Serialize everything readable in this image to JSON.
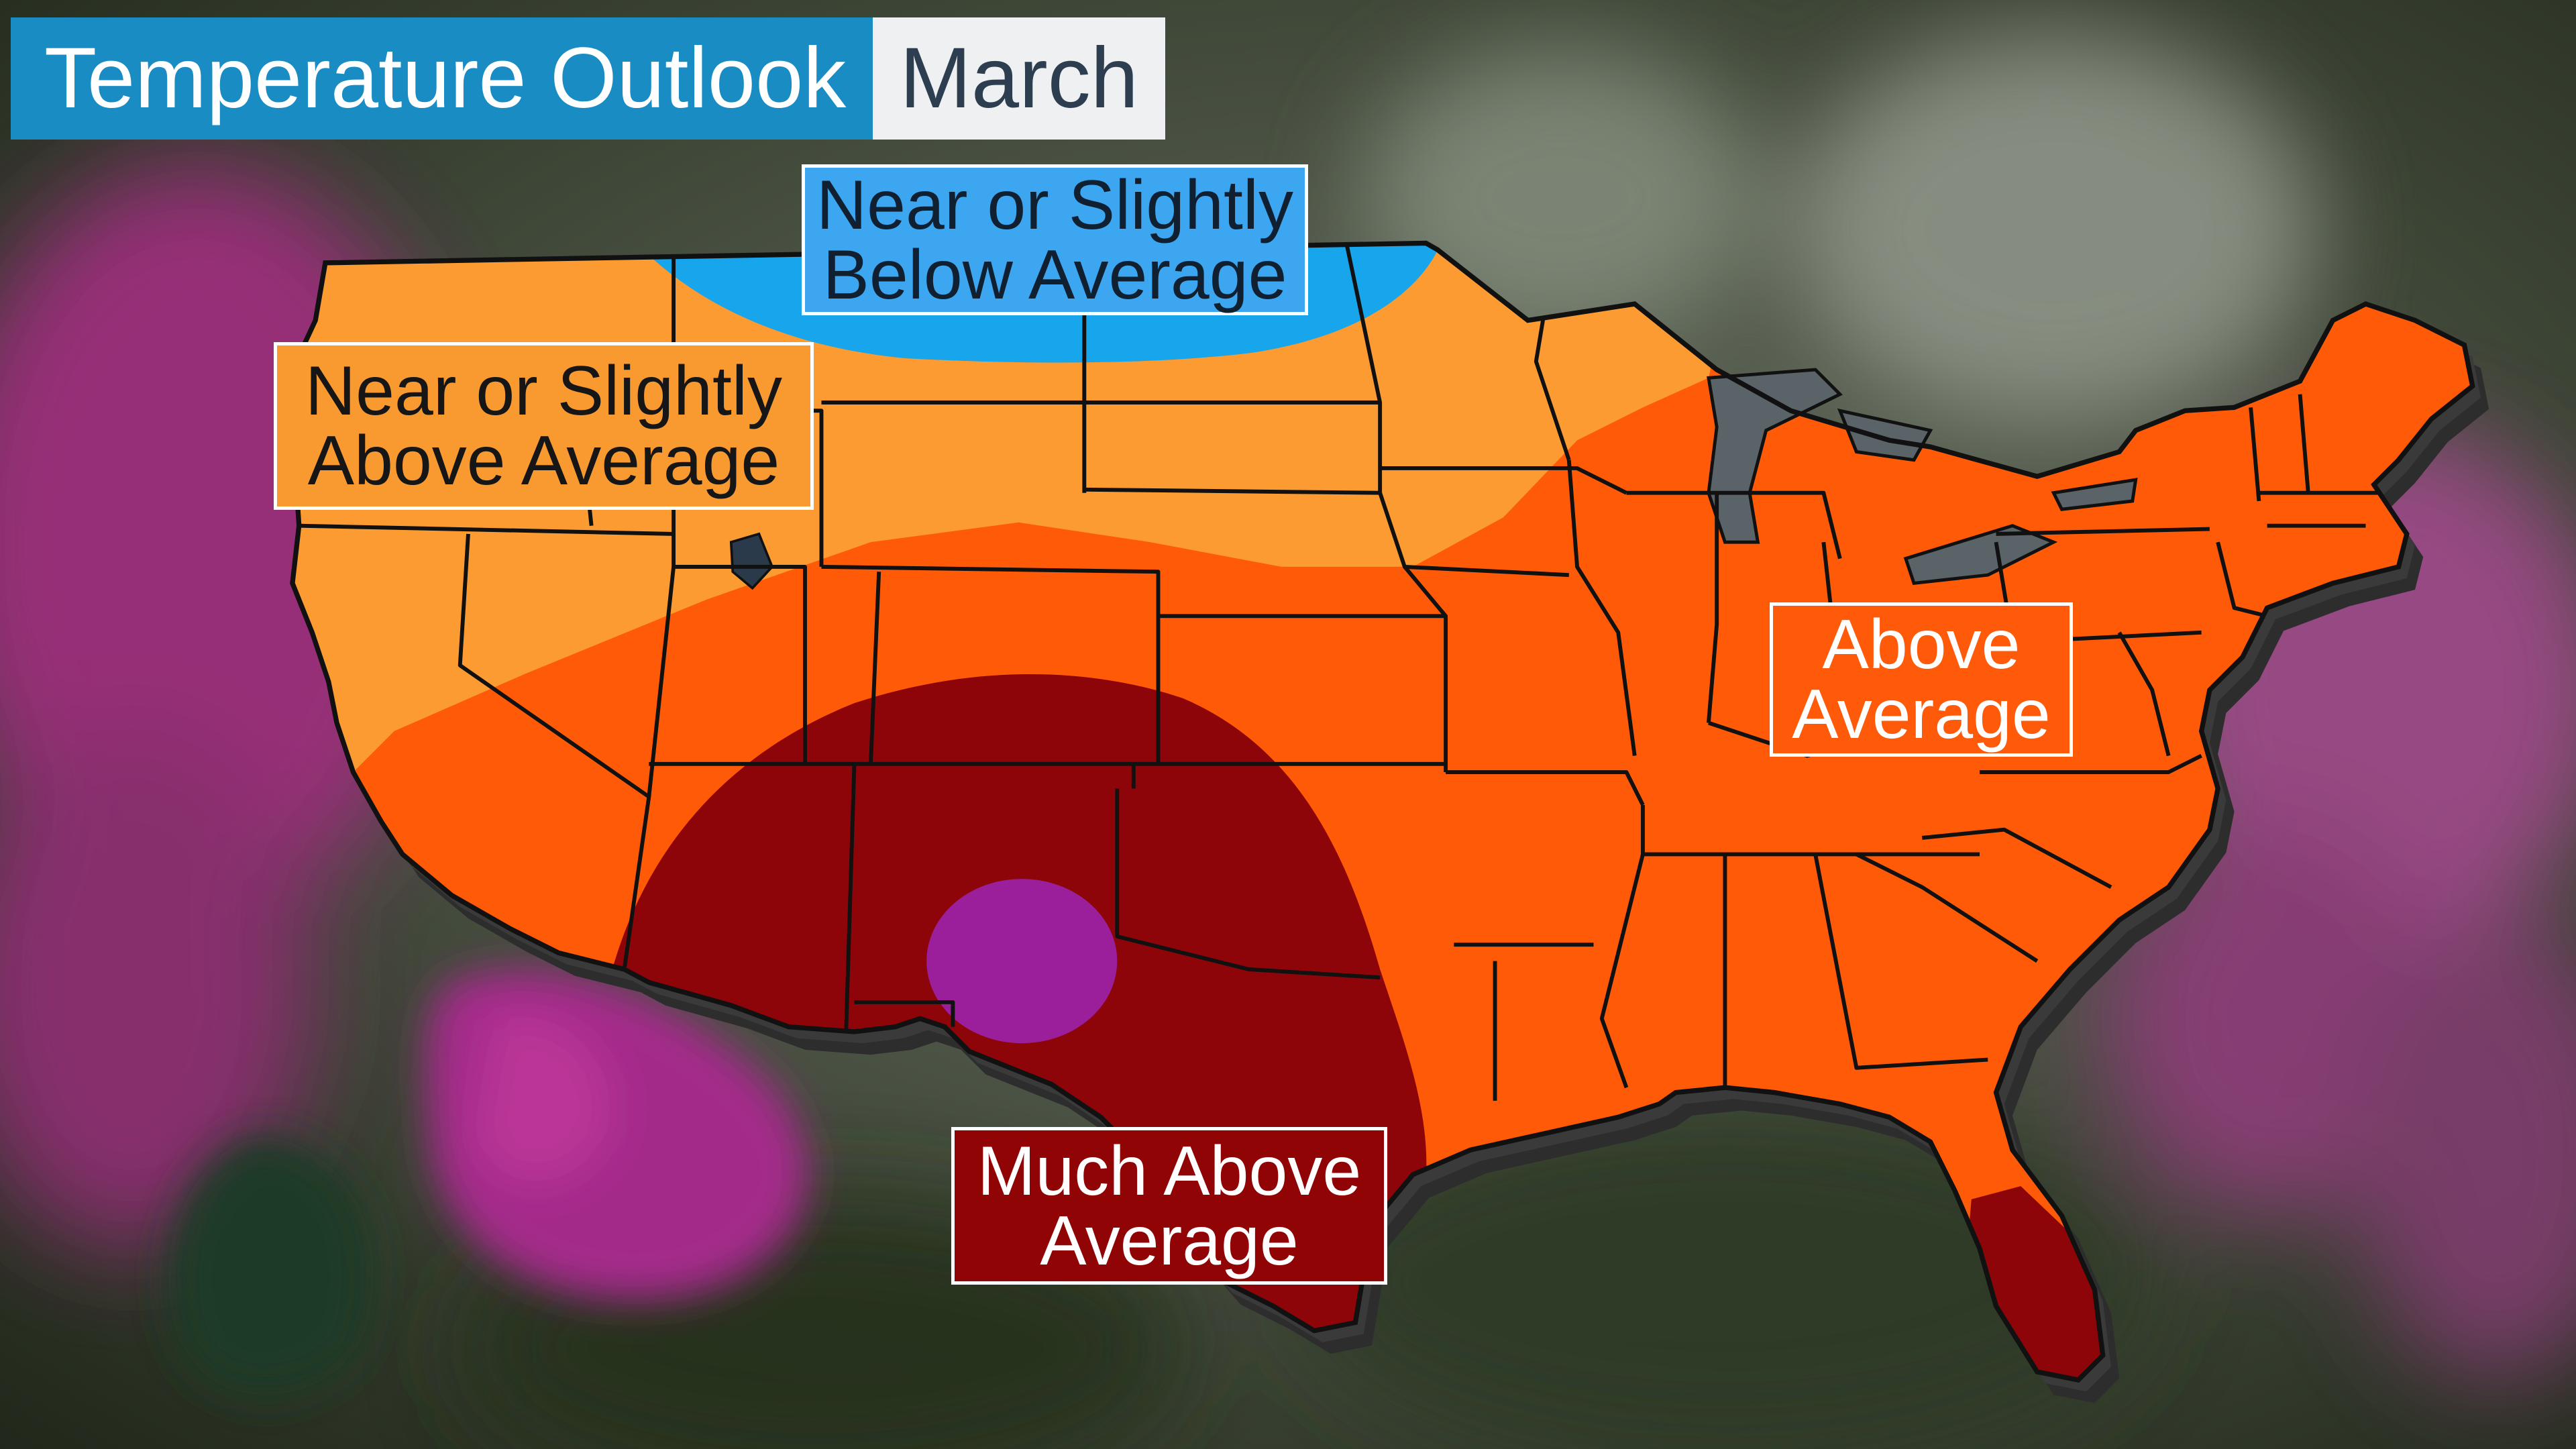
{
  "title": {
    "main": "Temperature Outlook",
    "month": "March"
  },
  "legend_labels": {
    "near_below": [
      "Near or Slightly",
      "Below Average"
    ],
    "near_above": [
      "Near or Slightly",
      "Above Average"
    ],
    "above": [
      "Above",
      "Average"
    ],
    "much_above": [
      "Much Above",
      "Average"
    ]
  },
  "categories": [
    {
      "name": "Near or Slightly Below Average",
      "color": "#17a5ec",
      "region": "northern tier: Montana, North Dakota"
    },
    {
      "name": "Near or Slightly Above Average",
      "color": "#fb9b32",
      "region": "Northwest, northern Plains, upper Midwest"
    },
    {
      "name": "Above Average",
      "color": "#ff5a08",
      "region": "South, Central Plains, Midwest, East"
    },
    {
      "name": "Much Above Average",
      "color": "#8e0509",
      "region": "Southwest, southern Plains, south Florida"
    },
    {
      "name": "(unlabeled)",
      "color": "#9b1f9a",
      "region": "southern New Mexico / west Texas"
    }
  ],
  "colors": {
    "map_outline": "#111111",
    "map_shadow": "#2d2d2d",
    "lake": "#5a6367"
  }
}
